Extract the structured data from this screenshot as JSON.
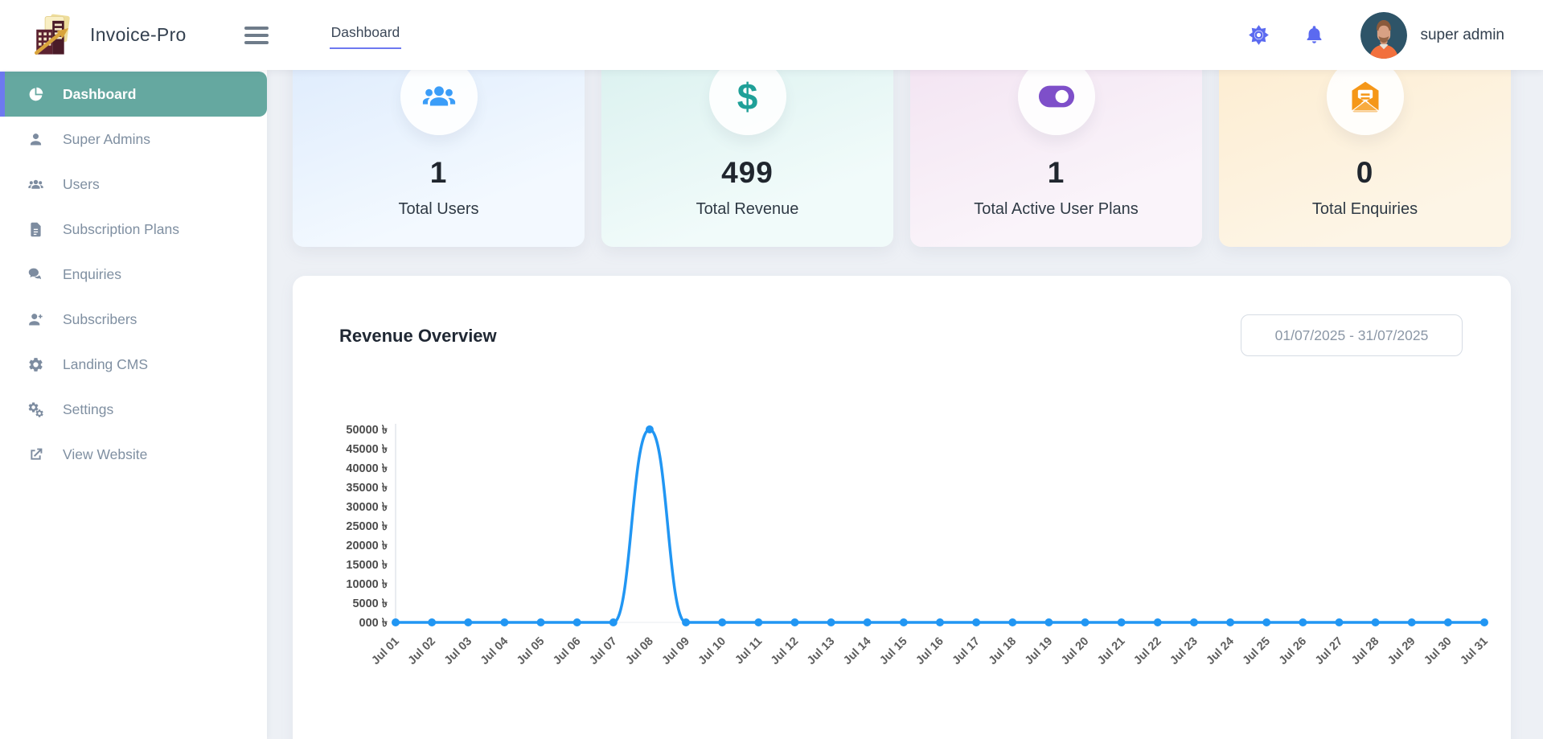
{
  "app": {
    "name": "Invoice-Pro"
  },
  "header": {
    "breadcrumb": "Dashboard",
    "user": {
      "name": "super admin"
    },
    "icons": {
      "theme": "sun-gear-icon",
      "notifications": "bell-icon",
      "logo": "invoice-building-logo",
      "avatar": "male-avatar"
    }
  },
  "sidebar": {
    "active_color": "#65a8a0",
    "accent_color": "#6d79f0",
    "items": [
      {
        "label": "Dashboard",
        "icon": "pie-chart-icon",
        "active": true
      },
      {
        "label": "Super Admins",
        "icon": "person-icon",
        "active": false
      },
      {
        "label": "Users",
        "icon": "users-icon",
        "active": false
      },
      {
        "label": "Subscription Plans",
        "icon": "document-icon",
        "active": false
      },
      {
        "label": "Enquiries",
        "icon": "chat-bubbles-icon",
        "active": false
      },
      {
        "label": "Subscribers",
        "icon": "person-add-icon",
        "active": false
      },
      {
        "label": "Landing CMS",
        "icon": "gear-icon",
        "active": false
      },
      {
        "label": "Settings",
        "icon": "gears-icon",
        "active": false
      },
      {
        "label": "View Website",
        "icon": "external-link-icon",
        "active": false
      }
    ]
  },
  "stats": [
    {
      "value": "1",
      "label": "Total Users",
      "icon": "users-icon",
      "accent": "#3b9df8",
      "bg": "#dceafc"
    },
    {
      "value": "499",
      "label": "Total Revenue",
      "icon": "dollar-icon",
      "accent": "#1fa098",
      "bg": "#d8f0ee"
    },
    {
      "value": "1",
      "label": "Total Active User Plans",
      "icon": "toggle-on-icon",
      "accent": "#7e4fc9",
      "bg": "#f2e2f1"
    },
    {
      "value": "0",
      "label": "Total Enquiries",
      "icon": "mail-open-icon",
      "accent": "#f59718",
      "bg": "#fdeccf"
    }
  ],
  "revenue_panel": {
    "title": "Revenue Overview",
    "date_range": "01/07/2025 - 31/07/2025"
  },
  "chart_data": {
    "type": "line",
    "title": "Revenue Overview",
    "x": [
      "Jul 01",
      "Jul 02",
      "Jul 03",
      "Jul 04",
      "Jul 05",
      "Jul 06",
      "Jul 07",
      "Jul 08",
      "Jul 09",
      "Jul 10",
      "Jul 11",
      "Jul 12",
      "Jul 13",
      "Jul 14",
      "Jul 15",
      "Jul 16",
      "Jul 17",
      "Jul 18",
      "Jul 19",
      "Jul 20",
      "Jul 21",
      "Jul 22",
      "Jul 23",
      "Jul 24",
      "Jul 25",
      "Jul 26",
      "Jul 27",
      "Jul 28",
      "Jul 29",
      "Jul 30",
      "Jul 31"
    ],
    "values": [
      0,
      0,
      0,
      0,
      0,
      0,
      0,
      50000,
      0,
      0,
      0,
      0,
      0,
      0,
      0,
      0,
      0,
      0,
      0,
      0,
      0,
      0,
      0,
      0,
      0,
      0,
      0,
      0,
      0,
      0,
      0
    ],
    "y_ticks": [
      "50000 ৳",
      "45000 ৳",
      "40000 ৳",
      "35000 ৳",
      "30000 ৳",
      "25000 ৳",
      "20000 ৳",
      "15000 ৳",
      "10000 ৳",
      "5000 ৳",
      "000 ৳"
    ],
    "y_tick_step": 5000,
    "ylim": [
      0,
      50000
    ],
    "currency": "৳",
    "line_color": "#2196f3",
    "point_radius": 5,
    "grid": false,
    "legend": "none",
    "x_label_rotation": -45
  }
}
